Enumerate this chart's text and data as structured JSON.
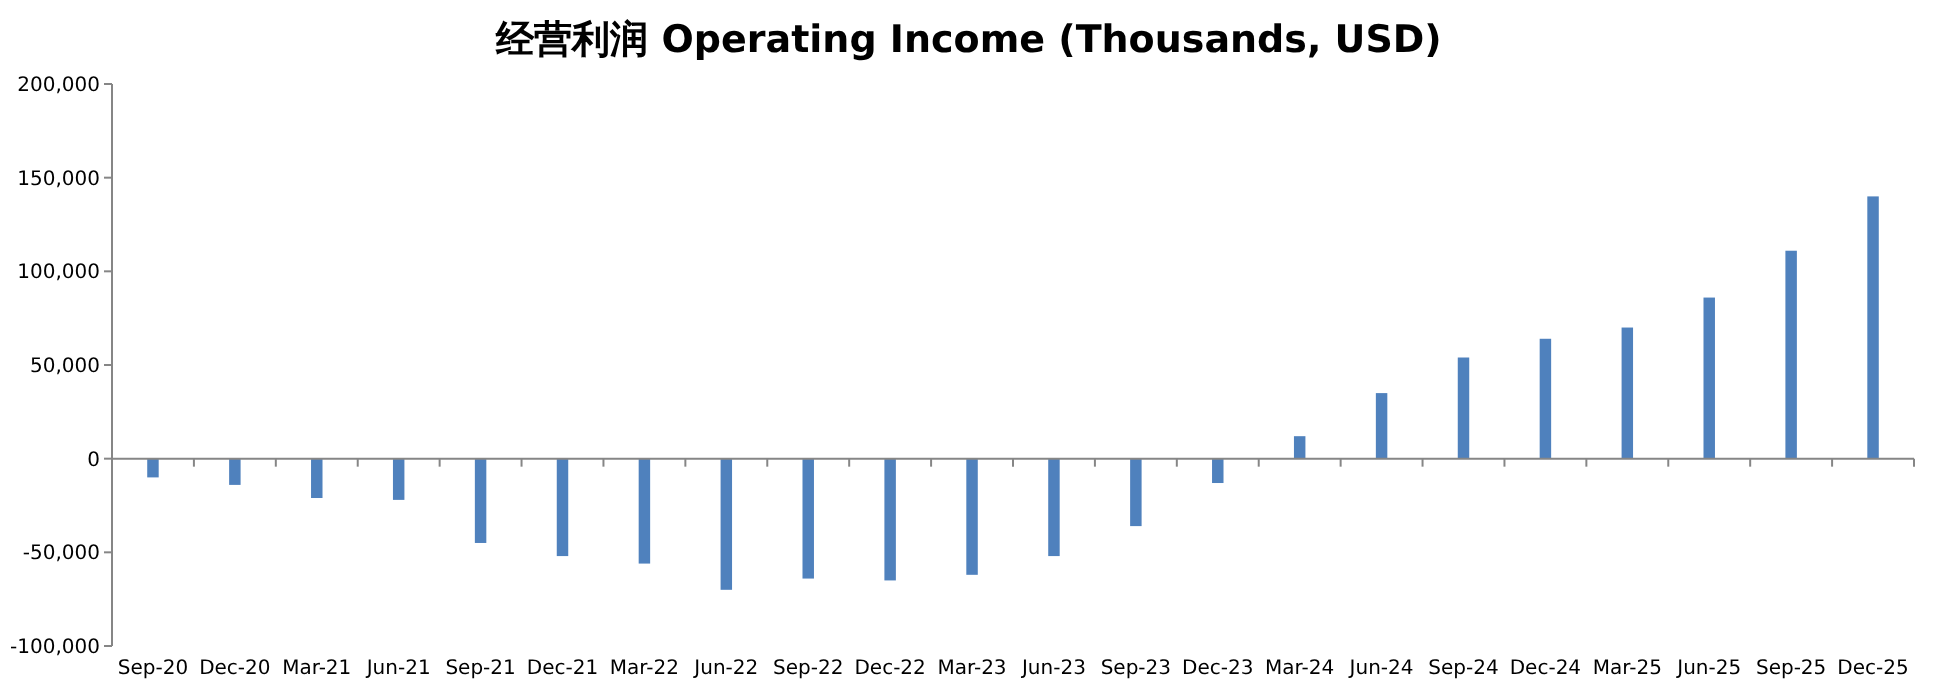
{
  "chart_data": {
    "type": "bar",
    "title": "经营利润 Operating Income (Thousands, USD)",
    "categories": [
      "Sep-20",
      "Dec-20",
      "Mar-21",
      "Jun-21",
      "Sep-21",
      "Dec-21",
      "Mar-22",
      "Jun-22",
      "Sep-22",
      "Dec-22",
      "Mar-23",
      "Jun-23",
      "Sep-23",
      "Dec-23",
      "Mar-24",
      "Jun-24",
      "Sep-24",
      "Dec-24",
      "Mar-25",
      "Jun-25",
      "Sep-25",
      "Dec-25"
    ],
    "values": [
      -10000,
      -14000,
      -21000,
      -22000,
      -45000,
      -52000,
      -56000,
      -70000,
      -64000,
      -65000,
      -62000,
      -52000,
      -36000,
      -13000,
      12000,
      35000,
      54000,
      64000,
      70000,
      86000,
      111000,
      140000
    ],
    "color": "#4f81bd",
    "ylim": [
      -100000,
      200000
    ],
    "yticks": [
      {
        "value": -100000,
        "label": "-100,000"
      },
      {
        "value": -50000,
        "label": "-50,000"
      },
      0,
      {
        "value": 50000,
        "label": "50,000"
      },
      {
        "value": 100000,
        "label": "100,000"
      },
      {
        "value": 150000,
        "label": "150,000"
      },
      {
        "value": 200000,
        "label": "200,000"
      }
    ]
  }
}
